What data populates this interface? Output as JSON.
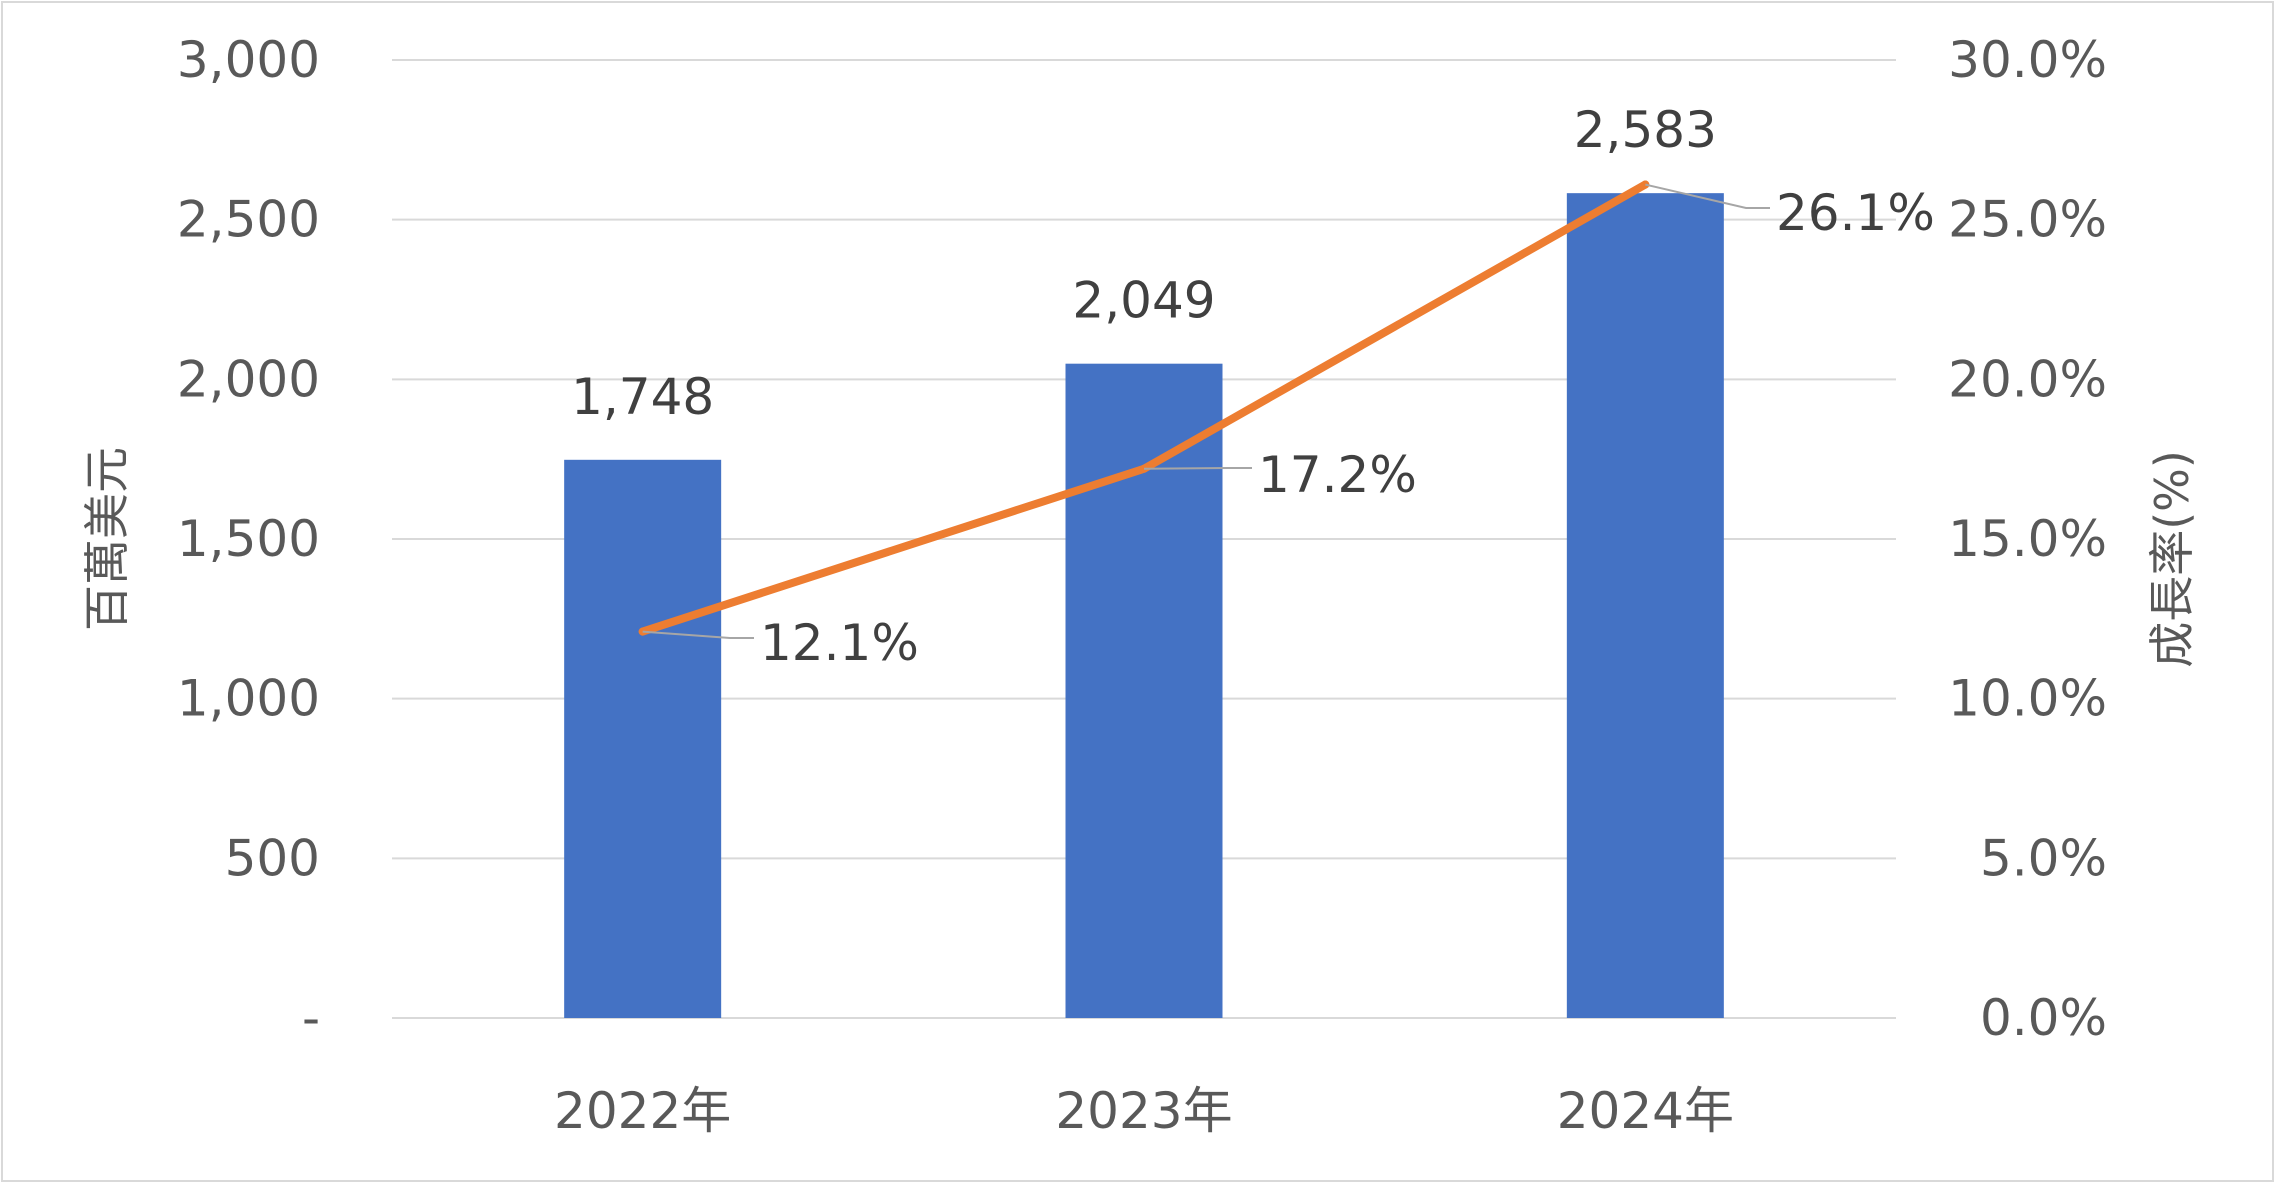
{
  "chart_data": {
    "type": "bar",
    "categories": [
      "2022年",
      "2023年",
      "2024年"
    ],
    "series": [
      {
        "type": "bar",
        "values": [
          1748,
          2049,
          2583
        ],
        "labels": [
          "1,748",
          "2,049",
          "2,583"
        ],
        "color": "#4472c4",
        "axis": "left"
      },
      {
        "type": "line",
        "values": [
          12.1,
          17.2,
          26.1
        ],
        "labels": [
          "12.1%",
          "17.2%",
          "26.1%"
        ],
        "color": "#ed7d31",
        "axis": "right"
      }
    ],
    "title": "",
    "ylabel": "百萬美元",
    "y2label": "成長率(%)",
    "ylim": [
      0,
      3000
    ],
    "y2lim": [
      0,
      30
    ],
    "yticks": [
      0,
      500,
      1000,
      1500,
      2000,
      2500,
      3000
    ],
    "ytick_labels": [
      "-",
      "500",
      "1,000",
      "1,500",
      "2,000",
      "2,500",
      "3,000"
    ],
    "y2ticks": [
      0,
      5,
      10,
      15,
      20,
      25,
      30
    ],
    "y2tick_labels": [
      "0.0%",
      "5.0%",
      "10.0%",
      "15.0%",
      "20.0%",
      "25.0%",
      "30.0%"
    ],
    "grid": true,
    "gridline_color": "#d9d9d9",
    "leader_line_color": "#a6a6a6"
  }
}
